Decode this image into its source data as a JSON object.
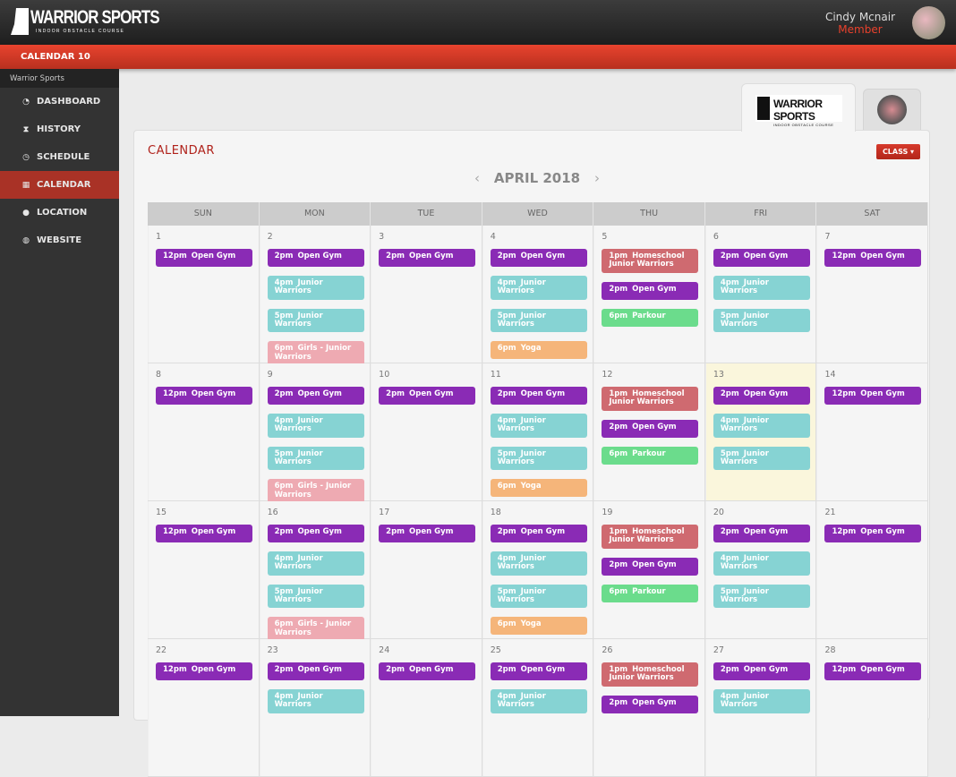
{
  "header": {
    "logo_text": "WARRIOR SPORTS",
    "logo_sub": "INDOOR OBSTACLE COURSE",
    "user_name": "Cindy Mcnair",
    "user_role": "Member"
  },
  "redbar": {
    "label": "CALENDAR  10"
  },
  "sidebar": {
    "brand": "Warrior Sports",
    "items": [
      {
        "label": "DASHBOARD",
        "icon": "dashboard-icon",
        "glyph": "◔"
      },
      {
        "label": "HISTORY",
        "icon": "hourglass-icon",
        "glyph": "⧗"
      },
      {
        "label": "SCHEDULE",
        "icon": "clock-icon",
        "glyph": "◷"
      },
      {
        "label": "CALENDAR",
        "icon": "calendar-icon",
        "glyph": "▦",
        "active": true
      },
      {
        "label": "LOCATION",
        "icon": "map-pin-icon",
        "glyph": "●"
      },
      {
        "label": "WEBSITE",
        "icon": "globe-icon",
        "glyph": "◍"
      }
    ]
  },
  "tabs": {
    "active_logo": "WARRIOR SPORTS",
    "active_logo_sub": "INDOOR OBSTACLE COURSE"
  },
  "calendar": {
    "title": "CALENDAR",
    "class_button": "CLASS ▾",
    "month": "APRIL 2018",
    "prev": "‹",
    "next": "›",
    "days_of_week": [
      "SUN",
      "MON",
      "TUE",
      "WED",
      "THU",
      "FRI",
      "SAT"
    ],
    "colors": {
      "open": "#8a2bb5",
      "junior": "#86d3d3",
      "girls": "#eeaab2",
      "yoga": "#f5b57a",
      "homeschool": "#cf6a70",
      "parkour": "#6bdc8c"
    },
    "today": "13",
    "weeks": [
      [
        {
          "day": "1",
          "events": [
            {
              "time": "12pm",
              "title": "Open Gym",
              "type": "open"
            }
          ]
        },
        {
          "day": "2",
          "events": [
            {
              "time": "2pm",
              "title": "Open Gym",
              "type": "open"
            },
            {
              "time": "4pm",
              "title": "Junior Warriors",
              "type": "junior"
            },
            {
              "time": "5pm",
              "title": "Junior Warriors",
              "type": "junior"
            },
            {
              "time": "6pm",
              "title": "Girls - Junior Warriors",
              "type": "girls"
            }
          ]
        },
        {
          "day": "3",
          "events": [
            {
              "time": "2pm",
              "title": "Open Gym",
              "type": "open"
            }
          ]
        },
        {
          "day": "4",
          "events": [
            {
              "time": "2pm",
              "title": "Open Gym",
              "type": "open"
            },
            {
              "time": "4pm",
              "title": "Junior Warriors",
              "type": "junior"
            },
            {
              "time": "5pm",
              "title": "Junior Warriors",
              "type": "junior"
            },
            {
              "time": "6pm",
              "title": "Yoga",
              "type": "yoga"
            }
          ]
        },
        {
          "day": "5",
          "events": [
            {
              "time": "1pm",
              "title": "Homeschool Junior Warriors",
              "type": "homeschool"
            },
            {
              "time": "2pm",
              "title": "Open Gym",
              "type": "open"
            },
            {
              "time": "6pm",
              "title": "Parkour",
              "type": "parkour"
            }
          ]
        },
        {
          "day": "6",
          "events": [
            {
              "time": "2pm",
              "title": "Open Gym",
              "type": "open"
            },
            {
              "time": "4pm",
              "title": "Junior Warriors",
              "type": "junior"
            },
            {
              "time": "5pm",
              "title": "Junior Warriors",
              "type": "junior"
            }
          ]
        },
        {
          "day": "7",
          "events": [
            {
              "time": "12pm",
              "title": "Open Gym",
              "type": "open"
            }
          ]
        }
      ],
      [
        {
          "day": "8",
          "events": [
            {
              "time": "12pm",
              "title": "Open Gym",
              "type": "open"
            }
          ]
        },
        {
          "day": "9",
          "events": [
            {
              "time": "2pm",
              "title": "Open Gym",
              "type": "open"
            },
            {
              "time": "4pm",
              "title": "Junior Warriors",
              "type": "junior"
            },
            {
              "time": "5pm",
              "title": "Junior Warriors",
              "type": "junior"
            },
            {
              "time": "6pm",
              "title": "Girls - Junior Warriors",
              "type": "girls"
            }
          ]
        },
        {
          "day": "10",
          "events": [
            {
              "time": "2pm",
              "title": "Open Gym",
              "type": "open"
            }
          ]
        },
        {
          "day": "11",
          "events": [
            {
              "time": "2pm",
              "title": "Open Gym",
              "type": "open"
            },
            {
              "time": "4pm",
              "title": "Junior Warriors",
              "type": "junior"
            },
            {
              "time": "5pm",
              "title": "Junior Warriors",
              "type": "junior"
            },
            {
              "time": "6pm",
              "title": "Yoga",
              "type": "yoga"
            }
          ]
        },
        {
          "day": "12",
          "events": [
            {
              "time": "1pm",
              "title": "Homeschool Junior Warriors",
              "type": "homeschool"
            },
            {
              "time": "2pm",
              "title": "Open Gym",
              "type": "open"
            },
            {
              "time": "6pm",
              "title": "Parkour",
              "type": "parkour"
            }
          ]
        },
        {
          "day": "13",
          "events": [
            {
              "time": "2pm",
              "title": "Open Gym",
              "type": "open"
            },
            {
              "time": "4pm",
              "title": "Junior Warriors",
              "type": "junior"
            },
            {
              "time": "5pm",
              "title": "Junior Warriors",
              "type": "junior"
            }
          ]
        },
        {
          "day": "14",
          "events": [
            {
              "time": "12pm",
              "title": "Open Gym",
              "type": "open"
            }
          ]
        }
      ],
      [
        {
          "day": "15",
          "events": [
            {
              "time": "12pm",
              "title": "Open Gym",
              "type": "open"
            }
          ]
        },
        {
          "day": "16",
          "events": [
            {
              "time": "2pm",
              "title": "Open Gym",
              "type": "open"
            },
            {
              "time": "4pm",
              "title": "Junior Warriors",
              "type": "junior"
            },
            {
              "time": "5pm",
              "title": "Junior Warriors",
              "type": "junior"
            },
            {
              "time": "6pm",
              "title": "Girls - Junior Warriors",
              "type": "girls"
            }
          ]
        },
        {
          "day": "17",
          "events": [
            {
              "time": "2pm",
              "title": "Open Gym",
              "type": "open"
            }
          ]
        },
        {
          "day": "18",
          "events": [
            {
              "time": "2pm",
              "title": "Open Gym",
              "type": "open"
            },
            {
              "time": "4pm",
              "title": "Junior Warriors",
              "type": "junior"
            },
            {
              "time": "5pm",
              "title": "Junior Warriors",
              "type": "junior"
            },
            {
              "time": "6pm",
              "title": "Yoga",
              "type": "yoga"
            }
          ]
        },
        {
          "day": "19",
          "events": [
            {
              "time": "1pm",
              "title": "Homeschool Junior Warriors",
              "type": "homeschool"
            },
            {
              "time": "2pm",
              "title": "Open Gym",
              "type": "open"
            },
            {
              "time": "6pm",
              "title": "Parkour",
              "type": "parkour"
            }
          ]
        },
        {
          "day": "20",
          "events": [
            {
              "time": "2pm",
              "title": "Open Gym",
              "type": "open"
            },
            {
              "time": "4pm",
              "title": "Junior Warriors",
              "type": "junior"
            },
            {
              "time": "5pm",
              "title": "Junior Warriors",
              "type": "junior"
            }
          ]
        },
        {
          "day": "21",
          "events": [
            {
              "time": "12pm",
              "title": "Open Gym",
              "type": "open"
            }
          ]
        }
      ],
      [
        {
          "day": "22",
          "events": [
            {
              "time": "12pm",
              "title": "Open Gym",
              "type": "open"
            }
          ]
        },
        {
          "day": "23",
          "events": [
            {
              "time": "2pm",
              "title": "Open Gym",
              "type": "open"
            },
            {
              "time": "4pm",
              "title": "Junior Warriors",
              "type": "junior"
            }
          ]
        },
        {
          "day": "24",
          "events": [
            {
              "time": "2pm",
              "title": "Open Gym",
              "type": "open"
            }
          ]
        },
        {
          "day": "25",
          "events": [
            {
              "time": "2pm",
              "title": "Open Gym",
              "type": "open"
            },
            {
              "time": "4pm",
              "title": "Junior Warriors",
              "type": "junior"
            }
          ]
        },
        {
          "day": "26",
          "events": [
            {
              "time": "1pm",
              "title": "Homeschool Junior Warriors",
              "type": "homeschool"
            },
            {
              "time": "2pm",
              "title": "Open Gym",
              "type": "open"
            }
          ]
        },
        {
          "day": "27",
          "events": [
            {
              "time": "2pm",
              "title": "Open Gym",
              "type": "open"
            },
            {
              "time": "4pm",
              "title": "Junior Warriors",
              "type": "junior"
            }
          ]
        },
        {
          "day": "28",
          "events": [
            {
              "time": "12pm",
              "title": "Open Gym",
              "type": "open"
            }
          ]
        }
      ]
    ]
  }
}
